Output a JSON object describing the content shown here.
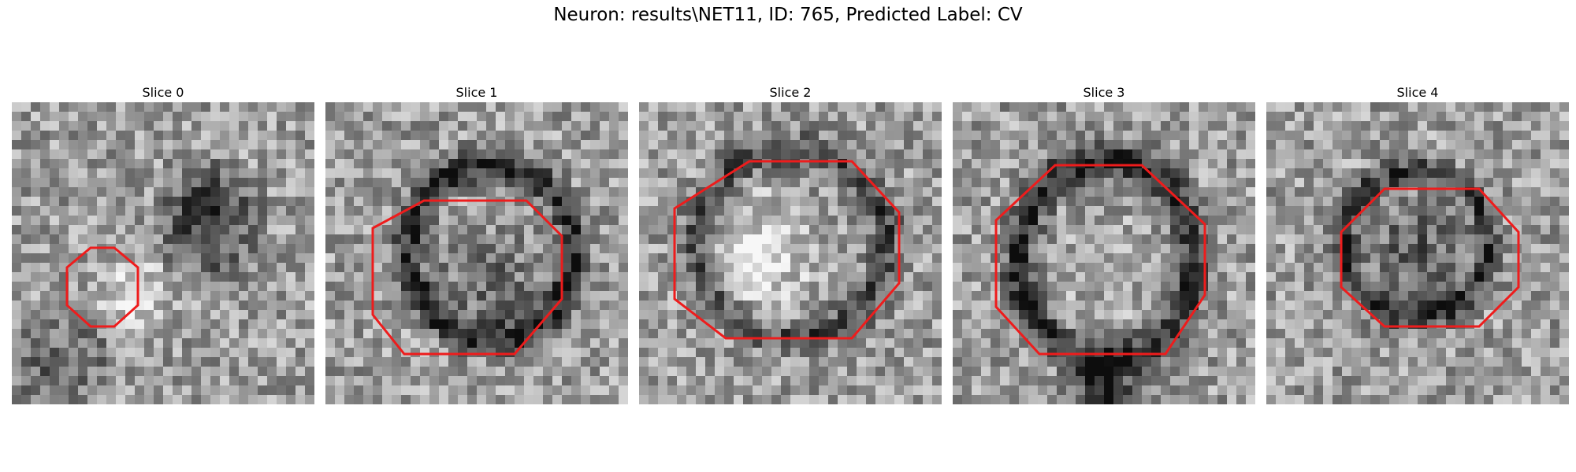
{
  "figure": {
    "title": "Neuron: results\\NET11, ID: 765, Predicted Label: CV"
  },
  "colors": {
    "contour": "#ee1c1c",
    "background": "#ffffff"
  },
  "panels": [
    {
      "title": "Slice 0"
    },
    {
      "title": "Slice 1"
    },
    {
      "title": "Slice 2"
    },
    {
      "title": "Slice 3"
    },
    {
      "title": "Slice 4"
    }
  ]
}
